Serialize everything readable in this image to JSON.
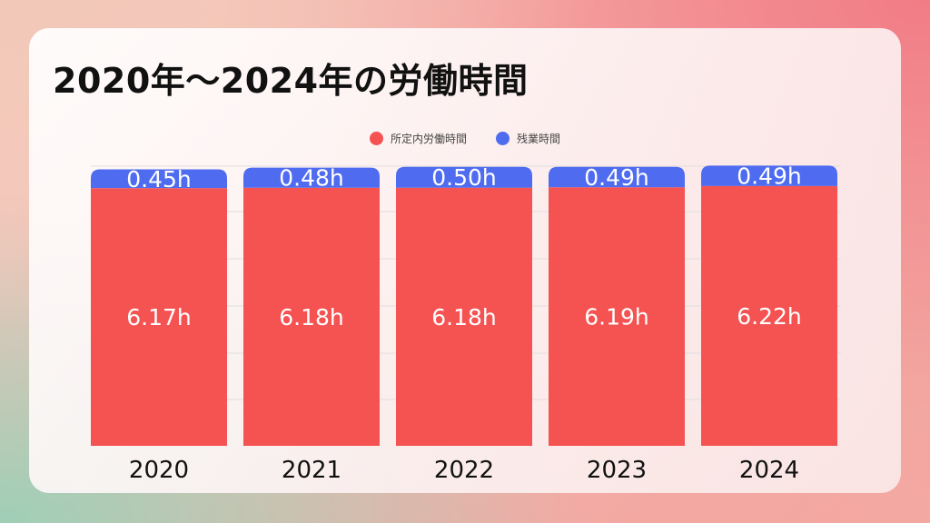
{
  "chart_data": {
    "type": "bar",
    "stacked": true,
    "title": "2020年～2024年の労働時間",
    "categories": [
      "2020",
      "2021",
      "2022",
      "2023",
      "2024"
    ],
    "series": [
      {
        "name": "所定内労働時間",
        "color": "#f55252",
        "values": [
          6.17,
          6.18,
          6.18,
          6.19,
          6.22
        ],
        "labels": [
          "6.17h",
          "6.18h",
          "6.18h",
          "6.19h",
          "6.22h"
        ]
      },
      {
        "name": "残業時間",
        "color": "#4f6cf0",
        "values": [
          0.45,
          0.48,
          0.5,
          0.49,
          0.49
        ],
        "labels": [
          "0.45h",
          "0.48h",
          "0.50h",
          "0.49h",
          "0.49h"
        ]
      }
    ],
    "grid": true,
    "legend_position": "top-center"
  }
}
